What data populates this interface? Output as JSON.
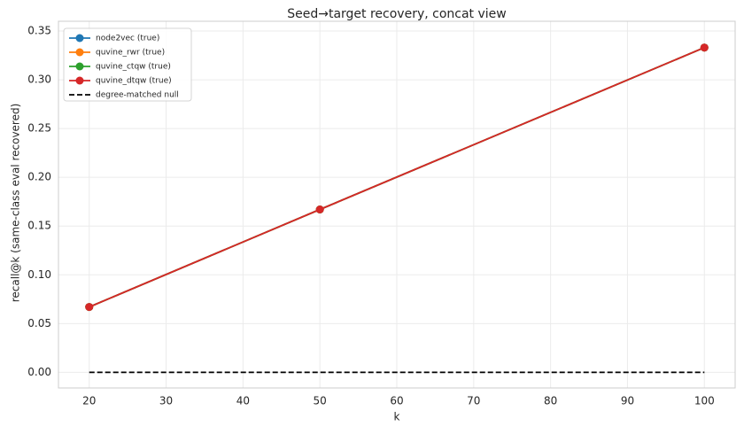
{
  "chart_data": {
    "type": "line",
    "title": "Seed→target recovery, concat view",
    "xlabel": "k",
    "ylabel": "recall@k (same-class eval recovered)",
    "x": [
      20,
      50,
      100
    ],
    "series": [
      {
        "name": "node2vec (true)",
        "color": "#1f77b4",
        "values": [
          0.067,
          0.167,
          0.333
        ],
        "marker": true,
        "dashed": false
      },
      {
        "name": "quvine_rwr (true)",
        "color": "#ff7f0e",
        "values": [
          0.067,
          0.167,
          0.333
        ],
        "marker": true,
        "dashed": false
      },
      {
        "name": "quvine_ctqw (true)",
        "color": "#2ca02c",
        "values": [
          0.067,
          0.167,
          0.333
        ],
        "marker": true,
        "dashed": false
      },
      {
        "name": "quvine_dtqw (true)",
        "color": "#d62728",
        "values": [
          0.067,
          0.167,
          0.333
        ],
        "marker": true,
        "dashed": false
      },
      {
        "name": "degree-matched null",
        "color": "#000000",
        "values": [
          0,
          0,
          0
        ],
        "marker": false,
        "dashed": true
      }
    ],
    "xlim": [
      16,
      104
    ],
    "xticks": [
      20,
      30,
      40,
      50,
      60,
      70,
      80,
      90,
      100
    ],
    "ylim": [
      -0.016,
      0.36
    ],
    "yticks": [
      {
        "value": 0,
        "label": "0.00"
      },
      0.05,
      {
        "value": 0.1,
        "label": "0.10"
      },
      0.15,
      {
        "value": 0.2,
        "label": "0.20"
      },
      0.25,
      {
        "value": 0.3,
        "label": "0.30"
      },
      0.35
    ],
    "grid": true,
    "legend": "upper-left"
  }
}
